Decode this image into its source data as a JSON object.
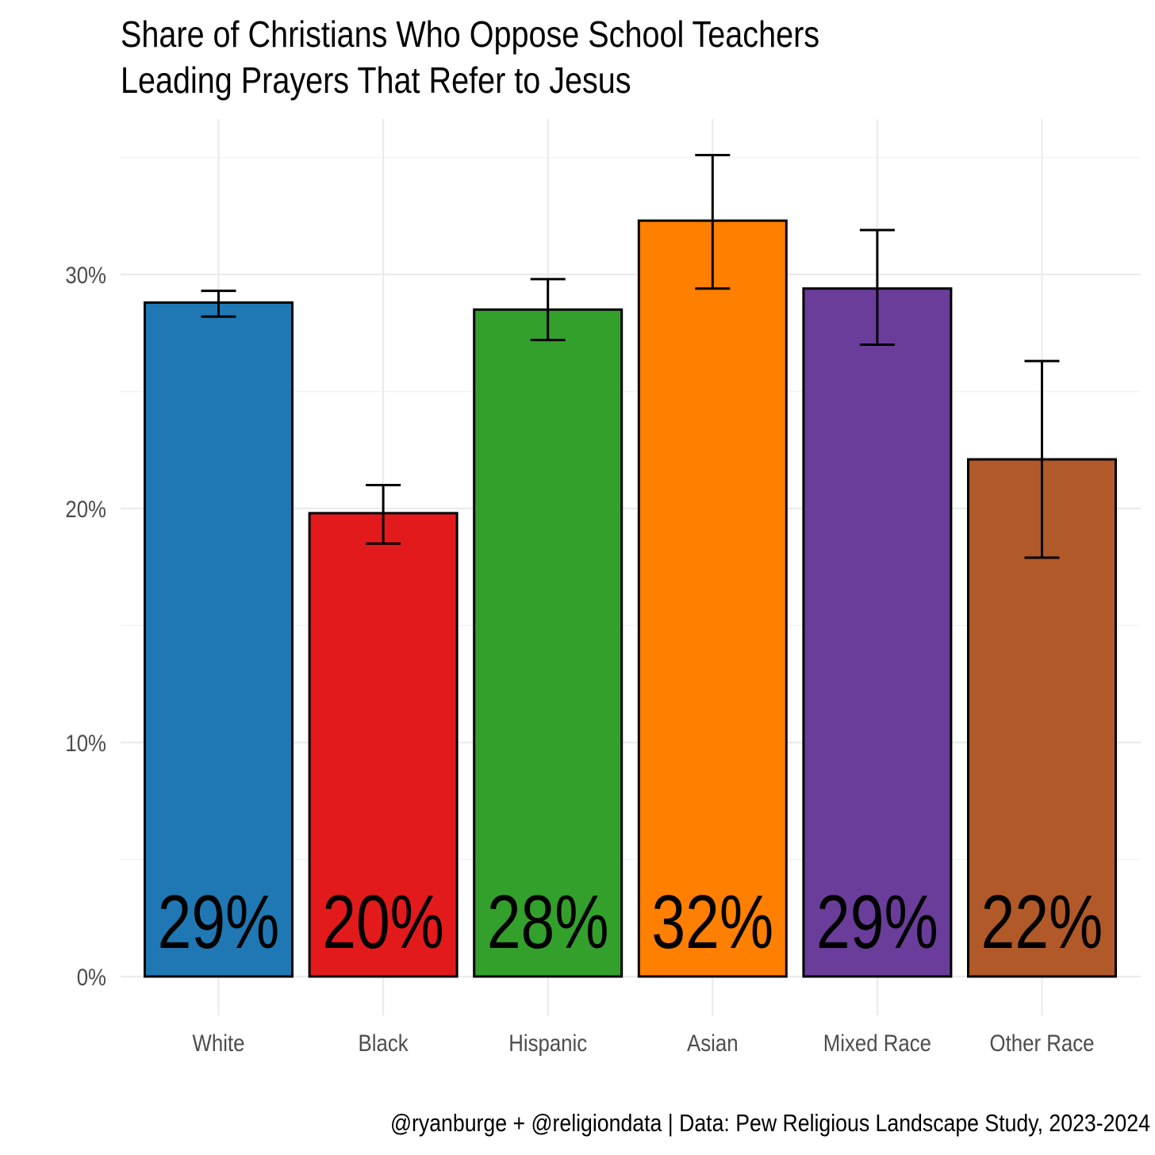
{
  "chart_data": {
    "type": "bar",
    "title_lines": [
      "Share of Christians Who Oppose School Teachers",
      "Leading Prayers That Refer to Jesus"
    ],
    "categories": [
      "White",
      "Black",
      "Hispanic",
      "Asian",
      "Mixed Race",
      "Other Race"
    ],
    "values": [
      28.8,
      19.8,
      28.5,
      32.3,
      29.4,
      22.1
    ],
    "labels": [
      "29%",
      "20%",
      "28%",
      "32%",
      "29%",
      "22%"
    ],
    "error_low": [
      28.2,
      18.5,
      27.2,
      29.4,
      27.0,
      17.9
    ],
    "error_high": [
      29.3,
      21.0,
      29.8,
      35.1,
      31.9,
      26.3
    ],
    "colors": [
      "#1f78b4",
      "#e31a1c",
      "#33a02c",
      "#ff7f00",
      "#6a3d9a",
      "#b15928"
    ],
    "y_ticks": [
      0,
      10,
      20,
      30
    ],
    "y_tick_labels": [
      "0%",
      "10%",
      "20%",
      "30%"
    ],
    "ylim": [
      0,
      35
    ],
    "xlabel": "",
    "ylabel": "",
    "grid": true,
    "caption": "@ryanburge + @religiondata | Data: Pew Religious Landscape Study, 2023-2024"
  }
}
